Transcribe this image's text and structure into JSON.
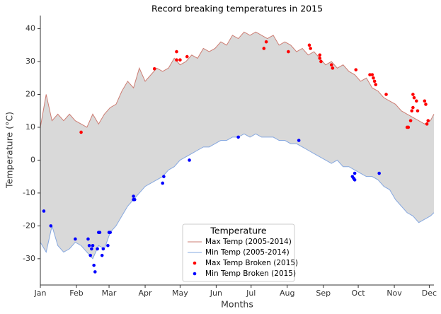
{
  "chart_data": {
    "type": "line",
    "title": "Record breaking temperatures in 2015",
    "x_label": "Months",
    "y_label": "Temperature (°C)",
    "xlim": [
      0,
      338
    ],
    "ylim": [
      -38,
      44
    ],
    "xticks": [
      {
        "value": 0,
        "label": "Jan"
      },
      {
        "value": 31,
        "label": "Feb"
      },
      {
        "value": 59,
        "label": "Mar"
      },
      {
        "value": 90,
        "label": "Apr"
      },
      {
        "value": 120,
        "label": "May"
      },
      {
        "value": 151,
        "label": "Jun"
      },
      {
        "value": 181,
        "label": "Jul"
      },
      {
        "value": 212,
        "label": "Aug"
      },
      {
        "value": 243,
        "label": "Sep"
      },
      {
        "value": 273,
        "label": "Oct"
      },
      {
        "value": 304,
        "label": "Nov"
      },
      {
        "value": 334,
        "label": "Dec"
      }
    ],
    "yticks": [
      -30,
      -20,
      -10,
      0,
      10,
      20,
      30,
      40
    ],
    "fill_between": true,
    "fill_color": "#d9d9d9",
    "legend_title": "Temperature",
    "legend": "lower center",
    "x": [
      0,
      5,
      10,
      15,
      20,
      25,
      30,
      35,
      40,
      45,
      50,
      55,
      60,
      65,
      70,
      75,
      80,
      85,
      90,
      95,
      100,
      105,
      110,
      115,
      120,
      125,
      130,
      135,
      140,
      145,
      150,
      155,
      160,
      165,
      170,
      175,
      180,
      185,
      190,
      195,
      200,
      205,
      210,
      215,
      220,
      225,
      230,
      235,
      240,
      245,
      250,
      255,
      260,
      265,
      270,
      275,
      280,
      285,
      290,
      295,
      300,
      305,
      310,
      315,
      320,
      325,
      330,
      335,
      338
    ],
    "series": [
      {
        "name": "Max Temp (2005-2014)",
        "type": "line",
        "color": "#cd7d73",
        "values": [
          10,
          20,
          12,
          14,
          12,
          14,
          12,
          11,
          10,
          14,
          11,
          14,
          16,
          17,
          21,
          24,
          22,
          28,
          24,
          26,
          28,
          27,
          28,
          31,
          29,
          30,
          32,
          31,
          34,
          33,
          34,
          36,
          35,
          38,
          37,
          39,
          38,
          39,
          38,
          37,
          38,
          35,
          36,
          35,
          33,
          34,
          32,
          33,
          31,
          29,
          30,
          28,
          29,
          27,
          26,
          24,
          25,
          22,
          21,
          19,
          18,
          17,
          15,
          14,
          13,
          12,
          11,
          12,
          14
        ]
      },
      {
        "name": "Min Temp (2005-2014)",
        "type": "line",
        "color": "#86a8e0",
        "values": [
          -25,
          -28,
          -20,
          -26,
          -28,
          -27,
          -25,
          -26,
          -28,
          -30,
          -26,
          -27,
          -22,
          -20,
          -17,
          -14,
          -12,
          -10,
          -8,
          -7,
          -6,
          -5,
          -3,
          -2,
          0,
          1,
          2,
          3,
          4,
          4,
          5,
          6,
          6,
          7,
          7,
          8,
          7,
          8,
          7,
          7,
          7,
          6,
          6,
          5,
          5,
          4,
          3,
          2,
          1,
          0,
          -1,
          0,
          -2,
          -2,
          -3,
          -4,
          -5,
          -5,
          -6,
          -8,
          -9,
          -12,
          -14,
          -16,
          -17,
          -19,
          -18,
          -17,
          -16
        ]
      },
      {
        "name": "Max Temp Broken (2015)",
        "type": "scatter",
        "color": "#ff0000",
        "x": [
          35,
          98,
          117,
          117,
          120,
          126,
          192,
          194,
          213,
          231,
          232,
          240,
          240,
          241,
          250,
          251,
          271,
          283,
          285,
          286,
          287,
          288,
          297,
          315,
          316,
          318,
          319,
          320,
          320,
          321,
          323,
          324,
          330,
          331,
          332,
          333
        ],
        "values": [
          8.5,
          27.8,
          33,
          30.5,
          30.5,
          31.5,
          34,
          36,
          33,
          35,
          34,
          31,
          32,
          30,
          29,
          28,
          27.5,
          26,
          26,
          25,
          24,
          23,
          20,
          10,
          10,
          12,
          15,
          16,
          20,
          19,
          18,
          15,
          18,
          17,
          11,
          12
        ]
      },
      {
        "name": "Min Temp Broken (2015)",
        "type": "scatter",
        "color": "#0000ff",
        "x": [
          3,
          9,
          30,
          41,
          42,
          43,
          44,
          45,
          46,
          47,
          49,
          50,
          51,
          53,
          54,
          58,
          59,
          60,
          80,
          80,
          81,
          105,
          106,
          128,
          170,
          222,
          268,
          269,
          270,
          270,
          291
        ],
        "values": [
          -15.5,
          -20,
          -24,
          -24,
          -26,
          -29,
          -27,
          -26,
          -32,
          -34,
          -27,
          -22,
          -22,
          -29,
          -27,
          -26,
          -22,
          -22,
          -11,
          -12,
          -12,
          -7,
          -5,
          0,
          7,
          6,
          -5,
          -5.5,
          -6,
          -4,
          -4
        ]
      }
    ]
  }
}
